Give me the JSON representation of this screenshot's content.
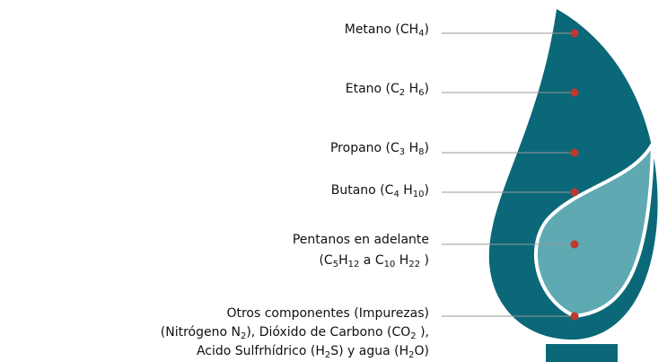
{
  "components": [
    {
      "label": [
        [
          "Metano (CH",
          "4",
          ")"
        ]
      ]
    },
    {
      "label": [
        [
          "Etano (C",
          "2",
          " H",
          "6",
          ")"
        ]
      ]
    },
    {
      "label": [
        [
          "Propano (C",
          "3",
          " H",
          "8",
          ")"
        ]
      ]
    },
    {
      "label": [
        [
          "Butano (C",
          "4",
          " H",
          "10",
          ")"
        ]
      ]
    },
    {
      "label": [
        [
          "Pentanos en adelante"
        ],
        [
          "(C",
          "5",
          "H",
          "12",
          " a C",
          "10",
          " H",
          "22",
          " )"
        ]
      ]
    },
    {
      "label": [
        [
          "Otros componentes (Impurezas)"
        ],
        [
          "(Nitrógeno N",
          "2",
          "), Dióxido de Carbono (CO",
          "2",
          " ),"
        ],
        [
          "Acido Sulfrhídrico (H",
          "2",
          "S) y agua (H",
          "2",
          "O)"
        ]
      ]
    }
  ]
}
